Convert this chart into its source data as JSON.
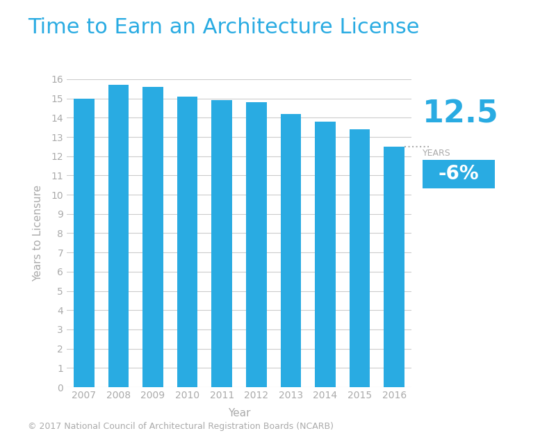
{
  "title": "Time to Earn an Architecture License",
  "title_color": "#29ABE2",
  "title_fontsize": 22,
  "xlabel": "Year",
  "ylabel": "Years to Licensure",
  "categories": [
    "2007",
    "2008",
    "2009",
    "2010",
    "2011",
    "2012",
    "2013",
    "2014",
    "2015",
    "2016"
  ],
  "values": [
    15.0,
    15.7,
    15.6,
    15.1,
    14.9,
    14.8,
    14.2,
    13.8,
    13.4,
    12.5
  ],
  "bar_color": "#29ABE2",
  "ylim": [
    0,
    16
  ],
  "yticks": [
    0,
    1,
    2,
    3,
    4,
    5,
    6,
    7,
    8,
    9,
    10,
    11,
    12,
    13,
    14,
    15,
    16
  ],
  "grid_color": "#cccccc",
  "background_color": "#ffffff",
  "annotation_value": "12.5",
  "annotation_label": "YEARS",
  "annotation_pct": "-6%",
  "annotation_value_color": "#29ABE2",
  "annotation_value_fontsize": 32,
  "annotation_label_color": "#aaaaaa",
  "annotation_pct_color": "#ffffff",
  "annotation_pct_bg": "#29ABE2",
  "annotation_pct_fontsize": 20,
  "copyright_text": "© 2017 National Council of Architectural Registration Boards (NCARB)",
  "copyright_color": "#aaaaaa",
  "copyright_fontsize": 9,
  "axis_label_color": "#aaaaaa",
  "tick_color": "#aaaaaa",
  "dotted_line_color": "#aaaaaa"
}
